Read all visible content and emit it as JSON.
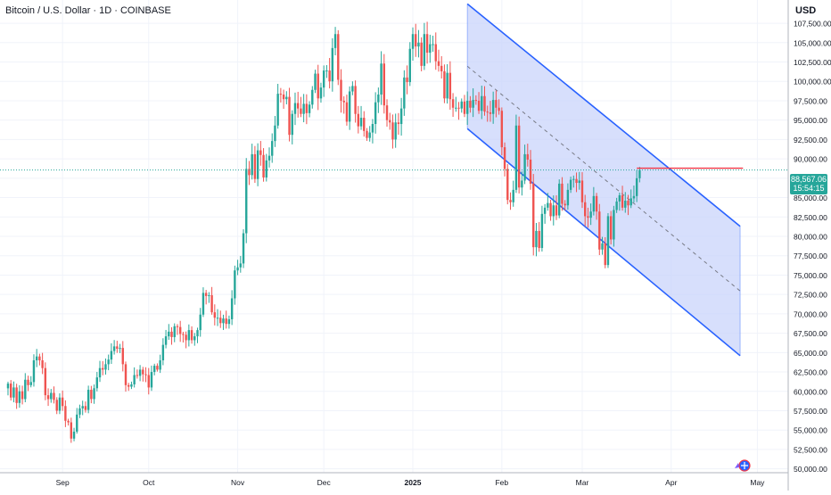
{
  "header": {
    "title": "Bitcoin / U.S. Dollar · 1D · COINBASE",
    "currency": "USD"
  },
  "price_tag": {
    "price": "88,567.06",
    "countdown": "15:54:15"
  },
  "colors": {
    "up": "#26a69a",
    "down": "#ef5350",
    "channel_line": "#2962ff",
    "channel_fill": "#c9d4fb",
    "resistance": "#f23645",
    "grid": "#f0f3fa"
  },
  "icons": {
    "logo": "tradingview-logo-icon"
  },
  "chart_data": {
    "type": "candlestick",
    "x_labels": [
      "Sep",
      "Oct",
      "Nov",
      "Dec",
      "2025",
      "Feb",
      "Mar",
      "Apr",
      "May"
    ],
    "y_ticks": [
      50000,
      52500,
      55000,
      57500,
      60000,
      62500,
      65000,
      67500,
      70000,
      72500,
      75000,
      77500,
      80000,
      82500,
      85000,
      87500,
      90000,
      92500,
      95000,
      97500,
      100000,
      102500,
      105000,
      107500
    ],
    "y_tick_labels": [
      "50,000.00",
      "52,500.00",
      "55,000.00",
      "57,500.00",
      "60,000.00",
      "62,500.00",
      "65,000.00",
      "67,500.00",
      "70,000.00",
      "72,500.00",
      "75,000.00",
      "77,500.00",
      "80,000.00",
      "82,500.00",
      "85,000.00",
      "87,500.00",
      "90,000.00",
      "92,500.00",
      "95,000.00",
      "97,500.00",
      "100,000.00",
      "102,500.00",
      "105,000.00",
      "107,500.00"
    ],
    "ylim": [
      49500,
      110500
    ],
    "grid": true,
    "date_start": "2024-08-13",
    "closes": [
      61000,
      59200,
      60500,
      58500,
      60000,
      59000,
      61500,
      60800,
      61200,
      64000,
      64500,
      64000,
      63000,
      59500,
      59000,
      59800,
      58900,
      57500,
      59200,
      58100,
      56200,
      56000,
      53900,
      54800,
      57000,
      57800,
      58100,
      57600,
      60200,
      59000,
      60400,
      61800,
      63000,
      62800,
      63500,
      64100,
      65200,
      65800,
      65500,
      65600,
      63500,
      60800,
      60600,
      60900,
      62100,
      62000,
      62800,
      62200,
      62100,
      60500,
      62500,
      63300,
      62800,
      64000,
      66000,
      67100,
      67700,
      67000,
      68400,
      68300,
      67400,
      67300,
      66600,
      67900,
      66600,
      67100,
      67900,
      69900,
      72700,
      72300,
      72400,
      70200,
      69500,
      69500,
      68800,
      69400,
      68700,
      69300,
      72000,
      75600,
      76000,
      76500,
      80400,
      88700,
      87900,
      90600,
      87400,
      91100,
      90500,
      87600,
      89800,
      90400,
      92300,
      94300,
      98400,
      98300,
      97700,
      98000,
      93100,
      95800,
      97200,
      96500,
      95800,
      97100,
      95900,
      97000,
      98900,
      101000,
      97800,
      99200,
      101400,
      101400,
      100000,
      104300,
      106100,
      100200,
      97500,
      97300,
      94800,
      98700,
      99400,
      95800,
      94200,
      95300,
      93600,
      92700,
      93400,
      94500,
      97300,
      98300,
      102300,
      96900,
      95000,
      94700,
      92500,
      94700,
      94500,
      96500,
      100500,
      99900,
      104200,
      106100,
      104500,
      105000,
      102000,
      106100,
      103700,
      104800,
      104800,
      102600,
      102000,
      101300,
      97800,
      101100,
      97700,
      96600,
      96600,
      96500,
      97400,
      95800,
      97500,
      96600,
      97600,
      97500,
      96200,
      98100,
      96100,
      96000,
      95800,
      97600,
      96600,
      96200,
      91500,
      88700,
      84700,
      84400,
      86000,
      94300,
      86300,
      87200,
      90600,
      89900,
      86800,
      78600,
      80700,
      78500,
      82900,
      83700,
      84300,
      82600,
      84000,
      82700,
      86800,
      84200,
      84000,
      86000,
      87300,
      87400,
      86900,
      87200,
      84400,
      82600,
      82400,
      83200,
      85200,
      83200,
      78300,
      79100,
      76300,
      82600,
      79600,
      83400,
      84500,
      85300,
      83700,
      84600,
      84000,
      84900,
      85200,
      87500,
      88567
    ],
    "channel": {
      "upper_start": {
        "date": "2025-01-20",
        "price": 110000
      },
      "upper_end": {
        "date": "2025-04-25",
        "price": 81300
      },
      "lower_start": {
        "date": "2025-01-20",
        "price": 93900
      },
      "lower_end": {
        "date": "2025-04-25",
        "price": 64600
      }
    },
    "resistance_level": {
      "price": 88800,
      "from": "2025-03-20",
      "to": "2025-04-26"
    }
  }
}
